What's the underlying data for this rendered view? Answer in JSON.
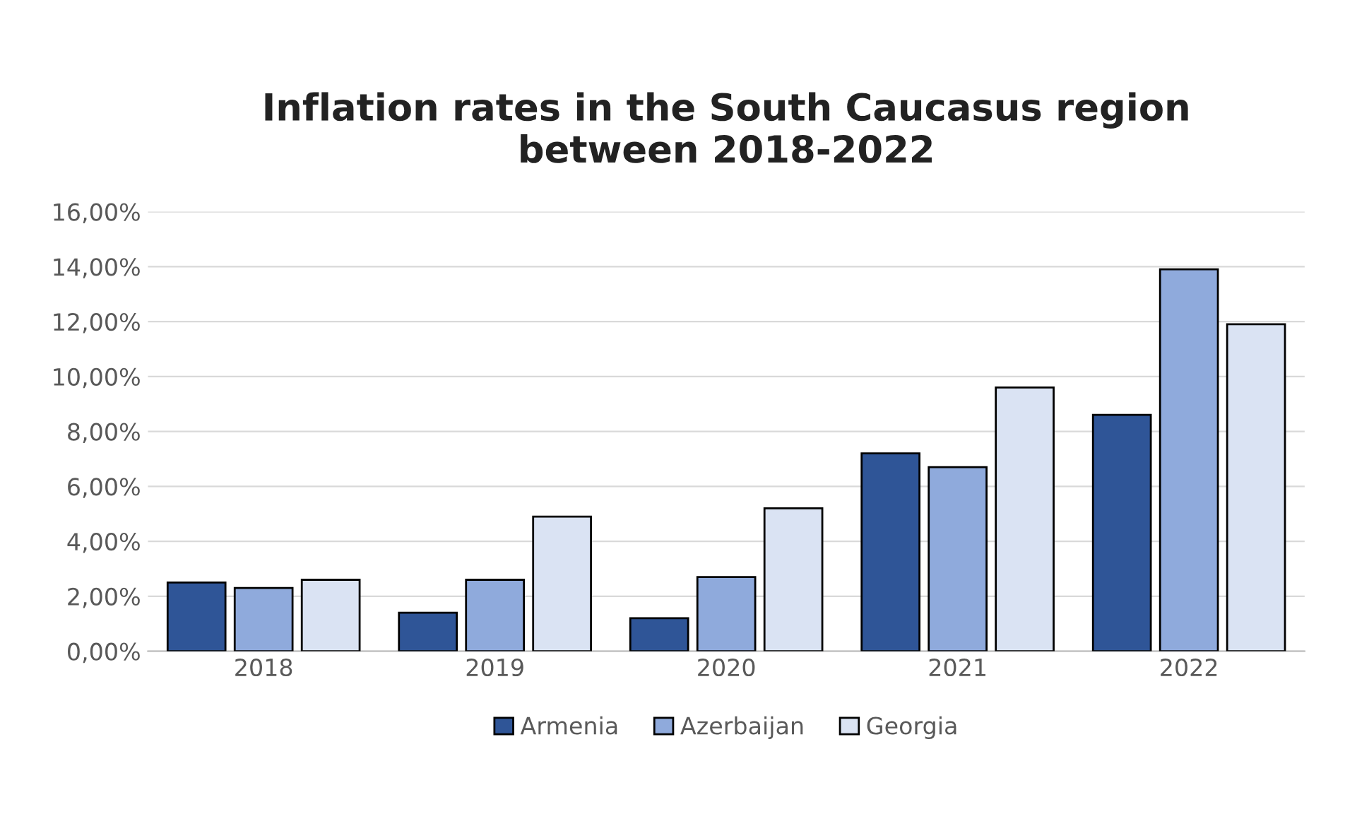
{
  "chart_data": {
    "type": "bar",
    "title": "Inflation rates in the South Caucasus region\nbetween 2018-2022",
    "categories": [
      "2018",
      "2019",
      "2020",
      "2021",
      "2022"
    ],
    "series": [
      {
        "name": "Armenia",
        "color": "#2f5597",
        "values": [
          2.5,
          1.4,
          1.2,
          7.2,
          8.6
        ]
      },
      {
        "name": "Azerbaijan",
        "color": "#8faadc",
        "values": [
          2.3,
          2.6,
          2.7,
          6.7,
          13.9
        ]
      },
      {
        "name": "Georgia",
        "color": "#dae3f3",
        "values": [
          2.6,
          4.9,
          5.2,
          9.6,
          11.9
        ]
      }
    ],
    "ylim": [
      0,
      16
    ],
    "yticks": [
      {
        "value": 0,
        "label": "0,00%"
      },
      {
        "value": 2,
        "label": "2,00%"
      },
      {
        "value": 4,
        "label": "4,00%"
      },
      {
        "value": 6,
        "label": "6,00%"
      },
      {
        "value": 8,
        "label": "8,00%"
      },
      {
        "value": 10,
        "label": "10,00%"
      },
      {
        "value": 12,
        "label": "12,00%"
      },
      {
        "value": 14,
        "label": "14,00%"
      },
      {
        "value": 16,
        "label": "16,00%"
      }
    ],
    "grid": "y",
    "legend": "bottom"
  }
}
